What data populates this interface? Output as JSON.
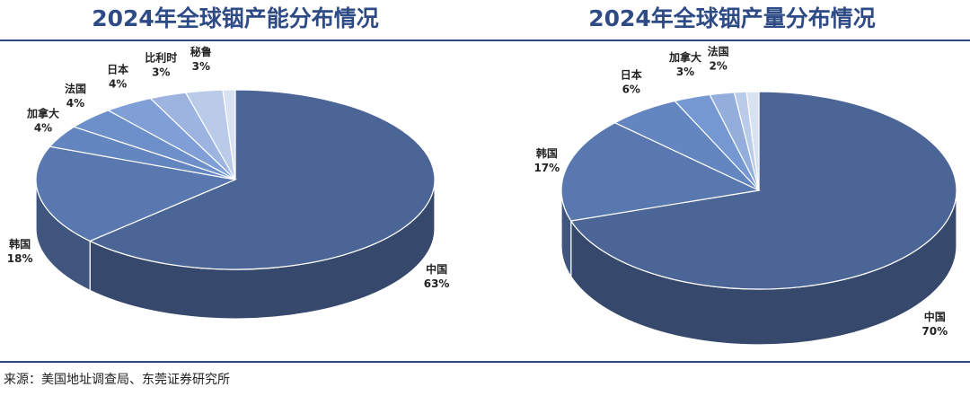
{
  "chart_data": [
    {
      "type": "pie",
      "title": "2024年全球铟产能分布情况",
      "categories": [
        "中国",
        "韩国",
        "加拿大",
        "法国",
        "日本",
        "比利时",
        "秘鲁",
        null
      ],
      "values": [
        63,
        18,
        4,
        4,
        4,
        3,
        3,
        1
      ],
      "value_labels": [
        "63%",
        "18%",
        "4%",
        "4%",
        "4%",
        "3%",
        "3%",
        null
      ],
      "colors": [
        "#4b6596",
        "#5a78b0",
        "#6385c0",
        "#6d8fca",
        "#7f9fd6",
        "#9cb4df",
        "#b9cbe9",
        "#d8e2f2"
      ]
    },
    {
      "type": "pie",
      "title": "2024年全球铟产量分布情况",
      "categories": [
        "中国",
        "韩国",
        "日本",
        "加拿大",
        "法国",
        null,
        null
      ],
      "values": [
        70,
        17,
        6,
        3,
        2,
        1,
        1
      ],
      "value_labels": [
        "70%",
        "17%",
        "6%",
        "3%",
        "2%",
        null,
        null
      ],
      "colors": [
        "#4b6596",
        "#5a78b0",
        "#6385c0",
        "#7597d2",
        "#94aedc",
        "#b9cbe9",
        "#d8e2f2"
      ]
    }
  ],
  "source": "来源：美国地址调查局、东莞证券研究所"
}
